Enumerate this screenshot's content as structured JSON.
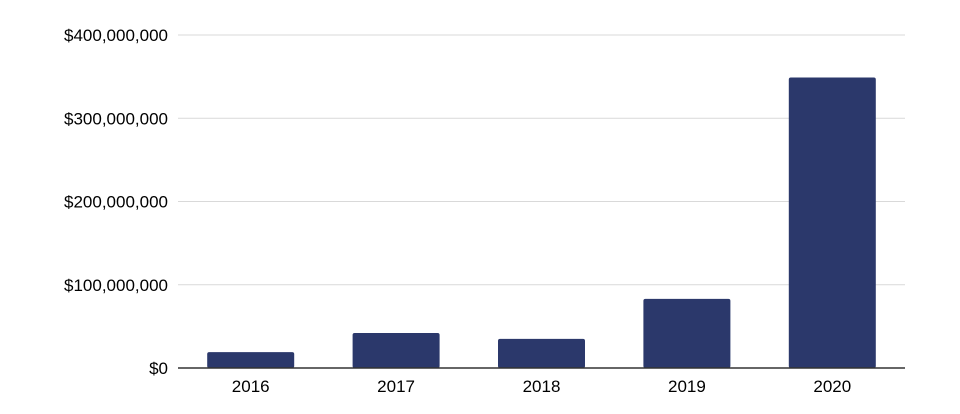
{
  "chart_data": {
    "type": "bar",
    "title": "",
    "xlabel": "",
    "ylabel": "",
    "categories": [
      "2016",
      "2017",
      "2018",
      "2019",
      "2020"
    ],
    "values": [
      19000000,
      42000000,
      35000000,
      83000000,
      349000000
    ],
    "ylim": [
      0,
      400000000
    ],
    "yticks": [
      0,
      100000000,
      200000000,
      300000000,
      400000000
    ],
    "ytick_labels": [
      "$0",
      "$100,000,000",
      "$200,000,000",
      "$300,000,000",
      "$400,000,000"
    ],
    "grid": true,
    "legend": "none",
    "bar_color": "#2b386b"
  }
}
